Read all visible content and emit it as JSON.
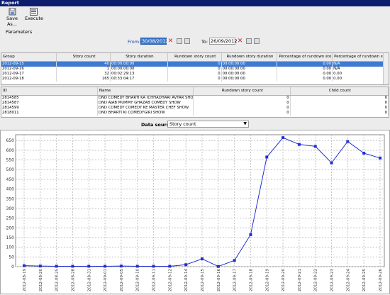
{
  "window": {
    "title": "Report"
  },
  "toolbar": {
    "save_label": "Save As...",
    "execute_label": "Execute"
  },
  "params": {
    "label": "Parameters",
    "from_label": "From:",
    "from_value": "30/08/2012",
    "to_label": "To:",
    "to_value": "26/09/2012"
  },
  "grid1": {
    "columns": [
      "Group",
      "Story count",
      "Story duration",
      "Rundown story count",
      "Rundown story duration",
      "Percentage of rundown sto...",
      "Percentage of rundown stor..."
    ],
    "rows": [
      [
        "2012-09-15",
        "40",
        "00:00:00:00",
        "0",
        "00:00:00:00",
        "0.00",
        "N/A"
      ],
      [
        "2012-09-16",
        "1",
        "00:00:00:00",
        "0",
        "00:00:00:00",
        "0.00",
        "N/A"
      ],
      [
        "2012-09-17",
        "32",
        "00:02:29:13",
        "0",
        "00:00:00:00",
        "0.00",
        "0.00"
      ],
      [
        "2012-09-18",
        "165",
        "00:33:04:17",
        "0",
        "00:00:00:00",
        "0.00",
        "0.00"
      ]
    ]
  },
  "grid2": {
    "columns": [
      "ID",
      "Name",
      "Rundown story count",
      "Child count"
    ],
    "rows": [
      [
        "2814585",
        "DND COMEDY BHARTI KA ICHHADHARI AVTAR SHOW",
        "0",
        "0"
      ],
      [
        "2814587",
        "DND AJAB MUMMY GHAZAB COMEDY SHOW",
        "0",
        "0"
      ],
      [
        "2814599",
        "DND COMEDY COMEDY KE MASTER CHEF SHOW",
        "0",
        "0"
      ],
      [
        "2818011",
        "DND BHARTI KI COMEDYGIRI SHOW",
        "0",
        "0"
      ]
    ]
  },
  "datasource": {
    "label": "Data source:",
    "value": "Story count"
  },
  "chart_data": {
    "type": "line",
    "x": [
      "2012-08-19",
      "2012-08-20",
      "2012-08-25",
      "2012-08-28",
      "2012-08-31",
      "2012-09-01",
      "2012-09-05",
      "2012-09-10",
      "2012-09-11",
      "2012-09-12",
      "2012-09-14",
      "2012-09-15",
      "2012-09-16",
      "2012-09-17",
      "2012-09-18",
      "2012-09-19",
      "2012-09-20",
      "2012-09-21",
      "2012-09-22",
      "2012-09-23",
      "2012-09-24",
      "2012-09-25",
      "2012-09-26"
    ],
    "values": [
      5,
      3,
      2,
      2,
      2,
      2,
      3,
      2,
      2,
      2,
      10,
      40,
      1,
      32,
      165,
      565,
      665,
      630,
      620,
      535,
      645,
      585,
      560
    ],
    "ylim": [
      0,
      680
    ],
    "yticks": [
      0,
      50,
      100,
      150,
      200,
      250,
      300,
      350,
      400,
      450,
      500,
      550,
      600,
      650
    ],
    "grid": true,
    "color": "#1f2fd6"
  }
}
